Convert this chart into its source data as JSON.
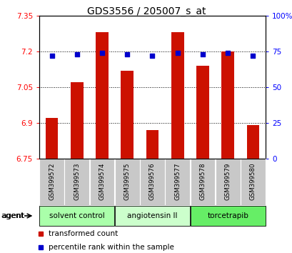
{
  "title": "GDS3556 / 205007_s_at",
  "samples": [
    "GSM399572",
    "GSM399573",
    "GSM399574",
    "GSM399575",
    "GSM399576",
    "GSM399577",
    "GSM399578",
    "GSM399579",
    "GSM399580"
  ],
  "bar_values": [
    6.92,
    7.07,
    7.28,
    7.12,
    6.87,
    7.28,
    7.14,
    7.2,
    6.89
  ],
  "percentile_values": [
    72,
    73,
    74,
    73,
    72,
    74,
    73,
    74,
    72
  ],
  "bar_bottom": 6.75,
  "ylim_left": [
    6.75,
    7.35
  ],
  "ylim_right": [
    0,
    100
  ],
  "yticks_left": [
    6.75,
    6.9,
    7.05,
    7.2,
    7.35
  ],
  "yticks_right": [
    0,
    25,
    50,
    75,
    100
  ],
  "ytick_labels_left": [
    "6.75",
    "6.9",
    "7.05",
    "7.2",
    "7.35"
  ],
  "ytick_labels_right": [
    "0",
    "25",
    "50",
    "75",
    "100%"
  ],
  "bar_color": "#cc1100",
  "dot_color": "#0000cc",
  "groups": [
    {
      "label": "solvent control",
      "indices": [
        0,
        1,
        2
      ],
      "color": "#aaffaa"
    },
    {
      "label": "angiotensin II",
      "indices": [
        3,
        4,
        5
      ],
      "color": "#ccffcc"
    },
    {
      "label": "torcetrapib",
      "indices": [
        6,
        7,
        8
      ],
      "color": "#66ee66"
    }
  ],
  "agent_label": "agent",
  "legend_bar_label": "transformed count",
  "legend_dot_label": "percentile rank within the sample",
  "bar_color_legend": "#cc1100",
  "dot_color_legend": "#0000cc"
}
